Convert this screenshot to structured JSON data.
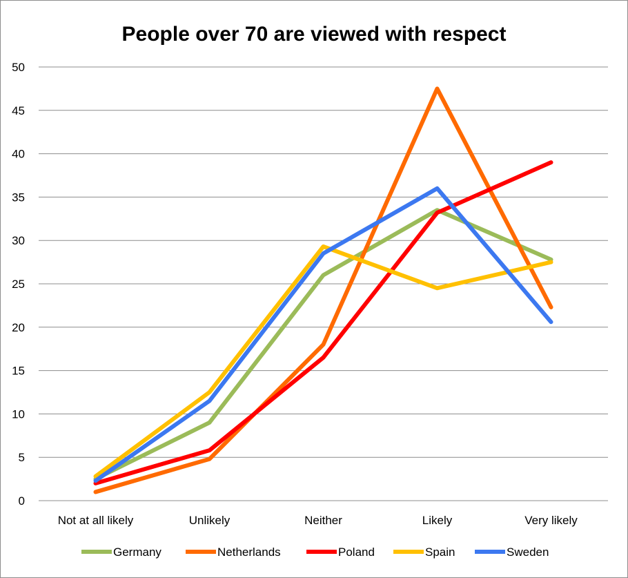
{
  "chart_data": {
    "type": "line",
    "title": "People over 70 are viewed with respect",
    "categories": [
      "Not at all likely",
      "Unlikely",
      "Neither",
      "Likely",
      "Very likely"
    ],
    "ylim": [
      0,
      50
    ],
    "yticks": [
      0,
      5,
      10,
      15,
      20,
      25,
      30,
      35,
      40,
      45,
      50
    ],
    "grid": true,
    "legend_position": "bottom",
    "series": [
      {
        "name": "Germany",
        "color": "#9bbb59",
        "values": [
          2.5,
          9.0,
          26.0,
          33.5,
          27.8
        ]
      },
      {
        "name": "Netherlands",
        "color": "#ff6a00",
        "values": [
          1.0,
          4.8,
          18.0,
          47.5,
          22.3
        ]
      },
      {
        "name": "Poland",
        "color": "#ff0000",
        "values": [
          2.0,
          5.8,
          16.5,
          33.2,
          39.0
        ]
      },
      {
        "name": "Spain",
        "color": "#ffc000",
        "values": [
          2.8,
          12.5,
          29.3,
          24.5,
          27.5
        ]
      },
      {
        "name": "Sweden",
        "color": "#3c78f0",
        "values": [
          2.3,
          11.5,
          28.5,
          36.0,
          20.6
        ]
      }
    ]
  }
}
